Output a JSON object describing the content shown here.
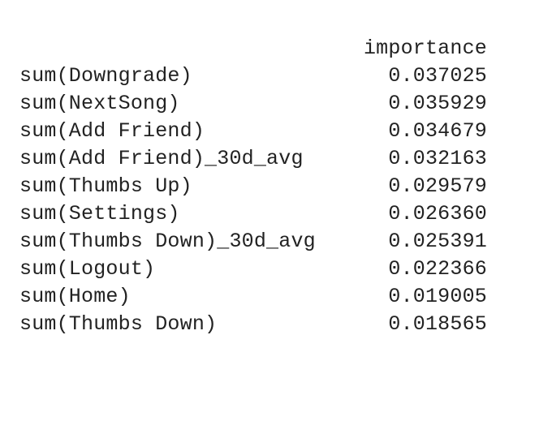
{
  "table": {
    "column_header": "importance",
    "rows": [
      {
        "feature": "sum(Downgrade)",
        "importance": "0.037025"
      },
      {
        "feature": "sum(NextSong)",
        "importance": "0.035929"
      },
      {
        "feature": "sum(Add Friend)",
        "importance": "0.034679"
      },
      {
        "feature": "sum(Add Friend)_30d_avg",
        "importance": "0.032163"
      },
      {
        "feature": "sum(Thumbs Up)",
        "importance": "0.029579"
      },
      {
        "feature": "sum(Settings)",
        "importance": "0.026360"
      },
      {
        "feature": "sum(Thumbs Down)_30d_avg",
        "importance": "0.025391"
      },
      {
        "feature": "sum(Logout)",
        "importance": "0.022366"
      },
      {
        "feature": "sum(Home)",
        "importance": "0.019005"
      },
      {
        "feature": "sum(Thumbs Down)",
        "importance": "0.018565"
      }
    ]
  }
}
